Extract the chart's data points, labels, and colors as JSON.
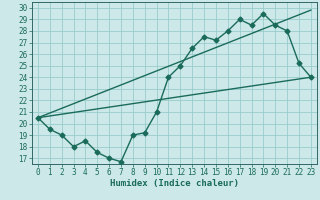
{
  "xlabel": "Humidex (Indice chaleur)",
  "bg_color": "#cce8e8",
  "grid_color": "#99cccc",
  "line_color": "#1a6b5a",
  "spine_color": "#336666",
  "xlim": [
    -0.5,
    23.5
  ],
  "ylim": [
    16.5,
    30.5
  ],
  "yticks": [
    17,
    18,
    19,
    20,
    21,
    22,
    23,
    24,
    25,
    26,
    27,
    28,
    29,
    30
  ],
  "xticks": [
    0,
    1,
    2,
    3,
    4,
    5,
    6,
    7,
    8,
    9,
    10,
    11,
    12,
    13,
    14,
    15,
    16,
    17,
    18,
    19,
    20,
    21,
    22,
    23
  ],
  "line1_x": [
    0,
    1,
    2,
    3,
    4,
    5,
    6,
    7,
    8,
    9,
    10,
    11,
    12,
    13,
    14,
    15,
    16,
    17,
    18,
    19,
    20,
    21,
    22,
    23
  ],
  "line1_y": [
    20.5,
    19.5,
    19.0,
    18.0,
    18.5,
    17.5,
    17.0,
    16.7,
    19.0,
    19.2,
    21.0,
    24.0,
    25.0,
    26.5,
    27.5,
    27.2,
    28.0,
    29.0,
    28.5,
    29.5,
    28.5,
    28.0,
    25.2,
    24.0
  ],
  "line2_x": [
    0,
    23
  ],
  "line2_y": [
    20.5,
    24.0
  ],
  "line3_x": [
    0,
    23
  ],
  "line3_y": [
    20.5,
    29.8
  ],
  "marker": "D",
  "marker_size": 2.5,
  "line_width": 1.0,
  "tick_fontsize": 5.5,
  "xlabel_fontsize": 6.5
}
